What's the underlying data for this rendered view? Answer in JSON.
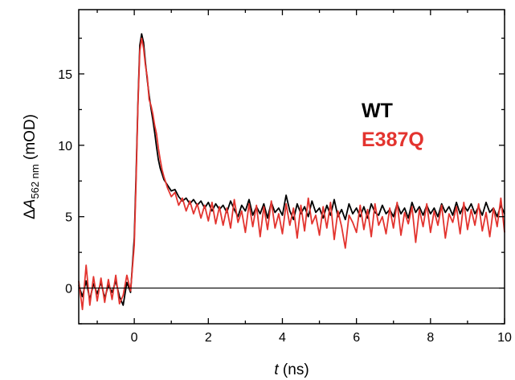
{
  "chart_data": {
    "type": "line",
    "title": "",
    "xlabel": {
      "italic": "t",
      "rest": " (ns)"
    },
    "ylabel": {
      "delta": "Δ",
      "italic": "A",
      "subscript": "562 nm",
      "rest": " (mOD)"
    },
    "xlim": [
      -1.5,
      10
    ],
    "ylim": [
      -2.5,
      19.5
    ],
    "xticks": [
      0,
      2,
      4,
      6,
      8,
      10
    ],
    "yticks": [
      0,
      5,
      10,
      15
    ],
    "legend_position": "right",
    "baseline": 0,
    "series": [
      {
        "name": "WT",
        "color": "#000000",
        "points": [
          [
            -1.5,
            0.2
          ],
          [
            -1.4,
            -0.6
          ],
          [
            -1.3,
            0.5
          ],
          [
            -1.2,
            -0.8
          ],
          [
            -1.1,
            0.3
          ],
          [
            -1.0,
            -0.4
          ],
          [
            -0.9,
            0.4
          ],
          [
            -0.8,
            -0.7
          ],
          [
            -0.7,
            0.2
          ],
          [
            -0.6,
            -0.3
          ],
          [
            -0.5,
            0.5
          ],
          [
            -0.4,
            -0.6
          ],
          [
            -0.3,
            -1.2
          ],
          [
            -0.2,
            0.4
          ],
          [
            -0.1,
            -0.3
          ],
          [
            0.0,
            3.5
          ],
          [
            0.05,
            8.0
          ],
          [
            0.1,
            13.0
          ],
          [
            0.15,
            17.0
          ],
          [
            0.2,
            17.8
          ],
          [
            0.25,
            17.2
          ],
          [
            0.3,
            15.8
          ],
          [
            0.35,
            14.6
          ],
          [
            0.4,
            13.5
          ],
          [
            0.45,
            12.6
          ],
          [
            0.5,
            11.8
          ],
          [
            0.55,
            10.9
          ],
          [
            0.6,
            9.9
          ],
          [
            0.65,
            9.0
          ],
          [
            0.7,
            8.4
          ],
          [
            0.75,
            8.0
          ],
          [
            0.8,
            7.6
          ],
          [
            0.9,
            7.2
          ],
          [
            1.0,
            6.8
          ],
          [
            1.1,
            6.9
          ],
          [
            1.2,
            6.4
          ],
          [
            1.3,
            6.1
          ],
          [
            1.4,
            6.3
          ],
          [
            1.5,
            5.9
          ],
          [
            1.6,
            6.2
          ],
          [
            1.7,
            5.8
          ],
          [
            1.8,
            6.1
          ],
          [
            1.9,
            5.6
          ],
          [
            2.0,
            6.0
          ],
          [
            2.1,
            5.4
          ],
          [
            2.2,
            5.9
          ],
          [
            2.3,
            5.5
          ],
          [
            2.4,
            5.8
          ],
          [
            2.5,
            5.3
          ],
          [
            2.6,
            6.1
          ],
          [
            2.7,
            5.5
          ],
          [
            2.8,
            5.0
          ],
          [
            2.9,
            5.8
          ],
          [
            3.0,
            5.4
          ],
          [
            3.1,
            6.2
          ],
          [
            3.2,
            5.1
          ],
          [
            3.3,
            5.7
          ],
          [
            3.4,
            5.2
          ],
          [
            3.5,
            5.9
          ],
          [
            3.6,
            4.9
          ],
          [
            3.7,
            6.0
          ],
          [
            3.8,
            5.3
          ],
          [
            3.9,
            5.6
          ],
          [
            4.0,
            5.1
          ],
          [
            4.1,
            6.5
          ],
          [
            4.2,
            5.4
          ],
          [
            4.3,
            4.8
          ],
          [
            4.4,
            5.9
          ],
          [
            4.5,
            5.2
          ],
          [
            4.6,
            5.7
          ],
          [
            4.7,
            5.0
          ],
          [
            4.8,
            6.1
          ],
          [
            4.9,
            5.3
          ],
          [
            5.0,
            5.6
          ],
          [
            5.1,
            4.9
          ],
          [
            5.2,
            5.8
          ],
          [
            5.3,
            5.1
          ],
          [
            5.4,
            6.2
          ],
          [
            5.5,
            5.0
          ],
          [
            5.6,
            5.5
          ],
          [
            5.7,
            4.8
          ],
          [
            5.8,
            5.9
          ],
          [
            5.9,
            5.2
          ],
          [
            6.0,
            5.6
          ],
          [
            6.1,
            5.0
          ],
          [
            6.2,
            5.7
          ],
          [
            6.3,
            4.9
          ],
          [
            6.4,
            5.9
          ],
          [
            6.5,
            5.3
          ],
          [
            6.6,
            5.1
          ],
          [
            6.7,
            5.8
          ],
          [
            6.8,
            5.2
          ],
          [
            6.9,
            5.5
          ],
          [
            7.0,
            5.0
          ],
          [
            7.1,
            5.9
          ],
          [
            7.2,
            5.2
          ],
          [
            7.3,
            5.6
          ],
          [
            7.4,
            4.9
          ],
          [
            7.5,
            6.0
          ],
          [
            7.6,
            5.3
          ],
          [
            7.7,
            5.7
          ],
          [
            7.8,
            5.1
          ],
          [
            7.9,
            5.8
          ],
          [
            8.0,
            5.2
          ],
          [
            8.1,
            5.6
          ],
          [
            8.2,
            5.0
          ],
          [
            8.3,
            5.9
          ],
          [
            8.4,
            5.3
          ],
          [
            8.5,
            5.7
          ],
          [
            8.6,
            5.1
          ],
          [
            8.7,
            6.0
          ],
          [
            8.8,
            5.2
          ],
          [
            8.9,
            5.8
          ],
          [
            9.0,
            5.4
          ],
          [
            9.1,
            5.9
          ],
          [
            9.2,
            5.2
          ],
          [
            9.3,
            5.7
          ],
          [
            9.4,
            5.1
          ],
          [
            9.5,
            6.0
          ],
          [
            9.6,
            5.3
          ],
          [
            9.7,
            5.6
          ],
          [
            9.8,
            5.0
          ],
          [
            9.9,
            5.8
          ],
          [
            10.0,
            5.2
          ]
        ]
      },
      {
        "name": "E387Q",
        "color": "#e3342f",
        "points": [
          [
            -1.5,
            0.5
          ],
          [
            -1.4,
            -1.5
          ],
          [
            -1.3,
            1.6
          ],
          [
            -1.2,
            -1.2
          ],
          [
            -1.1,
            0.8
          ],
          [
            -1.0,
            -0.9
          ],
          [
            -0.9,
            0.7
          ],
          [
            -0.8,
            -1.0
          ],
          [
            -0.7,
            0.6
          ],
          [
            -0.6,
            -0.8
          ],
          [
            -0.5,
            0.9
          ],
          [
            -0.4,
            -1.1
          ],
          [
            -0.3,
            -0.5
          ],
          [
            -0.2,
            0.9
          ],
          [
            -0.1,
            -0.2
          ],
          [
            0.0,
            3.0
          ],
          [
            0.05,
            7.5
          ],
          [
            0.1,
            12.8
          ],
          [
            0.15,
            16.6
          ],
          [
            0.2,
            17.5
          ],
          [
            0.25,
            16.8
          ],
          [
            0.3,
            15.6
          ],
          [
            0.35,
            14.8
          ],
          [
            0.4,
            13.2
          ],
          [
            0.45,
            12.8
          ],
          [
            0.5,
            12.2
          ],
          [
            0.55,
            11.4
          ],
          [
            0.6,
            10.8
          ],
          [
            0.65,
            9.8
          ],
          [
            0.7,
            9.0
          ],
          [
            0.75,
            8.3
          ],
          [
            0.8,
            7.8
          ],
          [
            0.9,
            7.0
          ],
          [
            1.0,
            6.4
          ],
          [
            1.1,
            6.7
          ],
          [
            1.2,
            5.8
          ],
          [
            1.3,
            6.3
          ],
          [
            1.4,
            5.4
          ],
          [
            1.5,
            6.1
          ],
          [
            1.6,
            5.2
          ],
          [
            1.7,
            5.9
          ],
          [
            1.8,
            4.9
          ],
          [
            1.9,
            5.8
          ],
          [
            2.0,
            4.7
          ],
          [
            2.1,
            6.0
          ],
          [
            2.2,
            4.5
          ],
          [
            2.3,
            5.7
          ],
          [
            2.4,
            4.4
          ],
          [
            2.5,
            5.6
          ],
          [
            2.6,
            4.2
          ],
          [
            2.7,
            6.2
          ],
          [
            2.8,
            4.6
          ],
          [
            2.9,
            5.4
          ],
          [
            3.0,
            3.9
          ],
          [
            3.1,
            5.9
          ],
          [
            3.2,
            4.3
          ],
          [
            3.3,
            5.8
          ],
          [
            3.4,
            3.6
          ],
          [
            3.5,
            5.7
          ],
          [
            3.6,
            4.1
          ],
          [
            3.7,
            6.1
          ],
          [
            3.8,
            4.2
          ],
          [
            3.9,
            5.2
          ],
          [
            4.0,
            3.8
          ],
          [
            4.1,
            5.9
          ],
          [
            4.2,
            4.4
          ],
          [
            4.3,
            5.6
          ],
          [
            4.4,
            3.5
          ],
          [
            4.5,
            5.8
          ],
          [
            4.6,
            4.0
          ],
          [
            4.7,
            6.3
          ],
          [
            4.8,
            4.5
          ],
          [
            4.9,
            5.1
          ],
          [
            5.0,
            3.7
          ],
          [
            5.1,
            5.7
          ],
          [
            5.2,
            4.2
          ],
          [
            5.3,
            6.0
          ],
          [
            5.4,
            3.4
          ],
          [
            5.5,
            5.4
          ],
          [
            5.6,
            4.3
          ],
          [
            5.7,
            2.8
          ],
          [
            5.8,
            5.1
          ],
          [
            5.9,
            4.6
          ],
          [
            6.0,
            3.9
          ],
          [
            6.1,
            5.8
          ],
          [
            6.2,
            4.1
          ],
          [
            6.3,
            5.5
          ],
          [
            6.4,
            3.6
          ],
          [
            6.5,
            5.9
          ],
          [
            6.6,
            4.4
          ],
          [
            6.7,
            5.0
          ],
          [
            6.8,
            3.8
          ],
          [
            6.9,
            5.6
          ],
          [
            7.0,
            4.2
          ],
          [
            7.1,
            6.0
          ],
          [
            7.2,
            3.7
          ],
          [
            7.3,
            5.3
          ],
          [
            7.4,
            4.5
          ],
          [
            7.5,
            5.7
          ],
          [
            7.6,
            3.2
          ],
          [
            7.7,
            5.5
          ],
          [
            7.8,
            4.3
          ],
          [
            7.9,
            5.9
          ],
          [
            8.0,
            3.9
          ],
          [
            8.1,
            5.4
          ],
          [
            8.2,
            4.4
          ],
          [
            8.3,
            5.8
          ],
          [
            8.4,
            3.5
          ],
          [
            8.5,
            5.2
          ],
          [
            8.6,
            4.6
          ],
          [
            8.7,
            5.7
          ],
          [
            8.8,
            3.8
          ],
          [
            8.9,
            6.0
          ],
          [
            9.0,
            4.1
          ],
          [
            9.1,
            5.5
          ],
          [
            9.2,
            4.4
          ],
          [
            9.3,
            5.9
          ],
          [
            9.4,
            4.0
          ],
          [
            9.5,
            5.3
          ],
          [
            9.6,
            3.6
          ],
          [
            9.7,
            5.6
          ],
          [
            9.8,
            4.3
          ],
          [
            9.9,
            6.3
          ],
          [
            10.0,
            3.9
          ]
        ]
      }
    ]
  }
}
